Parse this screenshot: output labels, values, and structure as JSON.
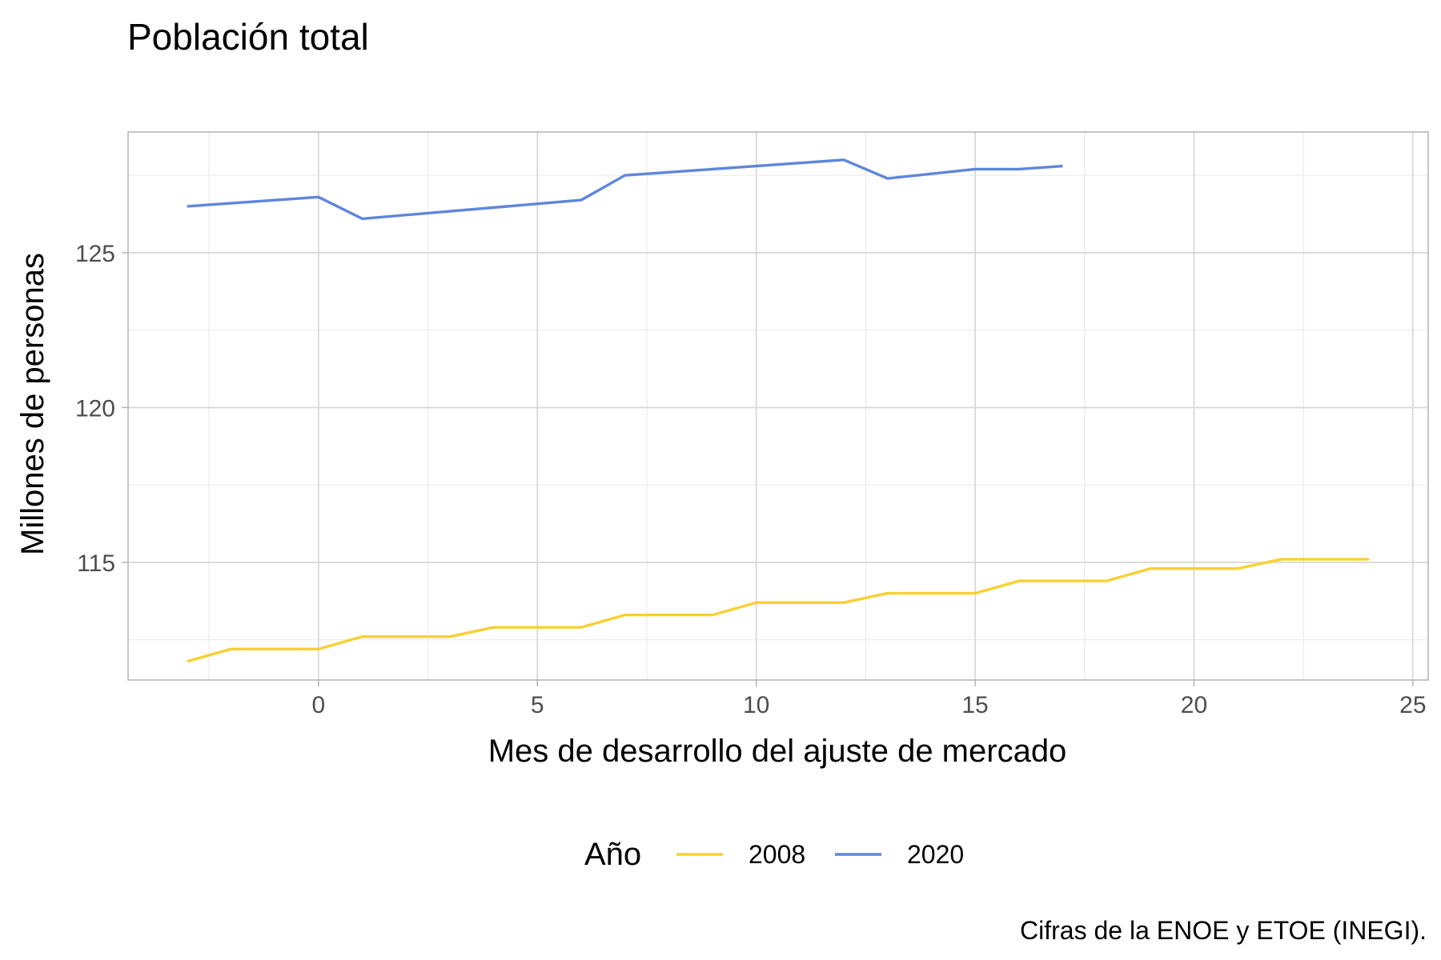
{
  "chart_data": {
    "type": "line",
    "title": "Población total",
    "xlabel": "Mes de desarrollo del ajuste de mercado",
    "ylabel": "Millones de personas",
    "caption": "Cifras de la ENOE y ETOE (INEGI).",
    "legend_title": "Año",
    "legend_position": "bottom",
    "grid": true,
    "xlim": [
      -4.35,
      25.35
    ],
    "ylim": [
      111.2,
      128.9
    ],
    "x_ticks": [
      0,
      5,
      10,
      15,
      20,
      25
    ],
    "x_tick_labels": [
      "0",
      "5",
      "10",
      "15",
      "20",
      "25"
    ],
    "y_ticks": [
      115,
      120,
      125
    ],
    "y_tick_labels": [
      "115",
      "120",
      "125"
    ],
    "series": [
      {
        "name": "2008",
        "color": "#F9D031",
        "x": [
          -3,
          -2,
          -1,
          0,
          1,
          2,
          3,
          4,
          5,
          6,
          7,
          8,
          9,
          10,
          11,
          12,
          13,
          14,
          15,
          16,
          17,
          18,
          19,
          20,
          21,
          22,
          23,
          24
        ],
        "y": [
          111.8,
          112.2,
          112.2,
          112.2,
          112.6,
          112.6,
          112.6,
          112.9,
          112.9,
          112.9,
          113.3,
          113.3,
          113.3,
          113.7,
          113.7,
          113.7,
          114.0,
          114.0,
          114.0,
          114.4,
          114.4,
          114.4,
          114.8,
          114.8,
          114.8,
          115.1,
          115.1,
          115.1
        ]
      },
      {
        "name": "2020",
        "color": "#5E86DC",
        "x": [
          -3,
          0,
          1,
          6,
          7,
          12,
          13,
          15,
          16,
          17
        ],
        "y": [
          126.5,
          126.8,
          126.1,
          126.7,
          127.5,
          128.0,
          127.4,
          127.7,
          127.7,
          127.8
        ]
      }
    ]
  }
}
